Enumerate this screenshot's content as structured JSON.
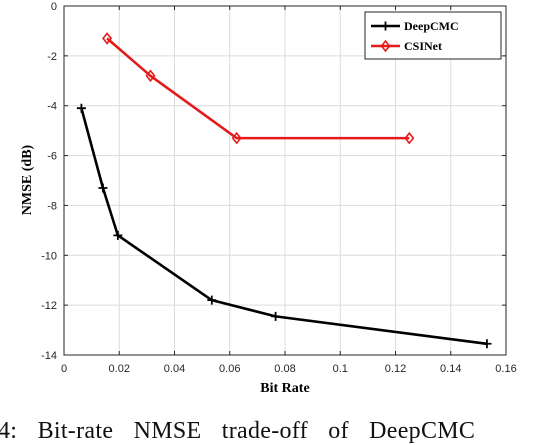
{
  "chart_data": {
    "type": "line",
    "xlabel": "Bit Rate",
    "ylabel": "NMSE (dB)",
    "xlim": [
      0,
      0.16
    ],
    "ylim": [
      -14,
      0
    ],
    "xticks": [
      0,
      0.02,
      0.04,
      0.06,
      0.08,
      0.1,
      0.12,
      0.14,
      0.16
    ],
    "xtick_labels": [
      "0",
      "0.02",
      "0.04",
      "0.06",
      "0.08",
      "0.1",
      "0.12",
      "0.14",
      "0.16"
    ],
    "yticks": [
      0,
      -2,
      -4,
      -6,
      -8,
      -10,
      -12,
      -14
    ],
    "ytick_labels": [
      "0",
      "-2",
      "-4",
      "-6",
      "-8",
      "-10",
      "-12",
      "-14"
    ],
    "grid": true,
    "legend_position": "top-right",
    "series": [
      {
        "name": "DeepCMC",
        "color": "#000000",
        "marker": "plus",
        "x": [
          0.0063,
          0.0141,
          0.0195,
          0.0535,
          0.0766,
          0.1531
        ],
        "y": [
          -4.1,
          -7.3,
          -9.2,
          -11.8,
          -12.45,
          -13.55
        ]
      },
      {
        "name": "CSINet",
        "color": "#e51a1a",
        "marker": "diamond",
        "x": [
          0.0156,
          0.0313,
          0.0625,
          0.125
        ],
        "y": [
          -1.3,
          -2.8,
          -5.3,
          -5.3
        ]
      }
    ]
  },
  "caption": {
    "text": "4: Bit-rate NMSE trade-off of DeepCMC"
  }
}
